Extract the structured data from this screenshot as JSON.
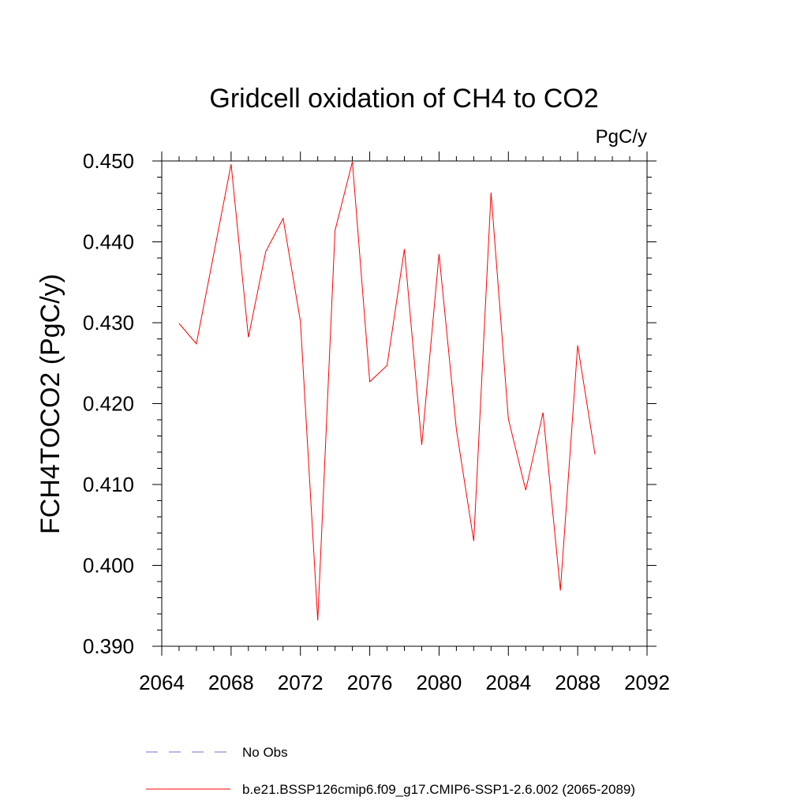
{
  "chart_data": {
    "type": "line",
    "title": "Gridcell oxidation of CH4 to CO2",
    "units": "PgC/y",
    "ylabel": "FCH4TOCO2  (PgC/y)",
    "xlabel": "",
    "xlim": [
      2064,
      2092
    ],
    "ylim": [
      0.39,
      0.45
    ],
    "x_ticks": [
      2064,
      2068,
      2072,
      2076,
      2080,
      2084,
      2088,
      2092
    ],
    "x_tick_labels": [
      "2064",
      "2068",
      "2072",
      "2076",
      "2080",
      "2084",
      "2088",
      "2092"
    ],
    "y_ticks": [
      0.39,
      0.4,
      0.41,
      0.42,
      0.43,
      0.44,
      0.45
    ],
    "y_tick_labels": [
      "0.390",
      "0.400",
      "0.410",
      "0.420",
      "0.430",
      "0.440",
      "0.450"
    ],
    "grid": false,
    "series": [
      {
        "name": "b.e21.BSSP126cmip6.f09_g17.CMIP6-SSP1-2.6.002 (2065-2089)",
        "color": "#ff0000",
        "style": "solid",
        "x": [
          2065,
          2066,
          2067,
          2068,
          2069,
          2070,
          2071,
          2072,
          2073,
          2074,
          2075,
          2076,
          2077,
          2078,
          2079,
          2080,
          2081,
          2082,
          2083,
          2084,
          2085,
          2086,
          2087,
          2088,
          2089
        ],
        "values": [
          0.4299,
          0.4274,
          0.4385,
          0.4496,
          0.4282,
          0.4388,
          0.4429,
          0.4302,
          0.3932,
          0.4414,
          0.4499,
          0.4227,
          0.4247,
          0.4391,
          0.4149,
          0.4385,
          0.4168,
          0.403,
          0.4461,
          0.4181,
          0.4093,
          0.4189,
          0.3969,
          0.4272,
          0.4137
        ]
      }
    ],
    "legend": [
      {
        "label": "No Obs",
        "color": "#7b6fc6",
        "style": "dashed"
      },
      {
        "label": "b.e21.BSSP126cmip6.f09_g17.CMIP6-SSP1-2.6.002 (2065-2089)",
        "color": "#ff0000",
        "style": "solid"
      }
    ]
  }
}
